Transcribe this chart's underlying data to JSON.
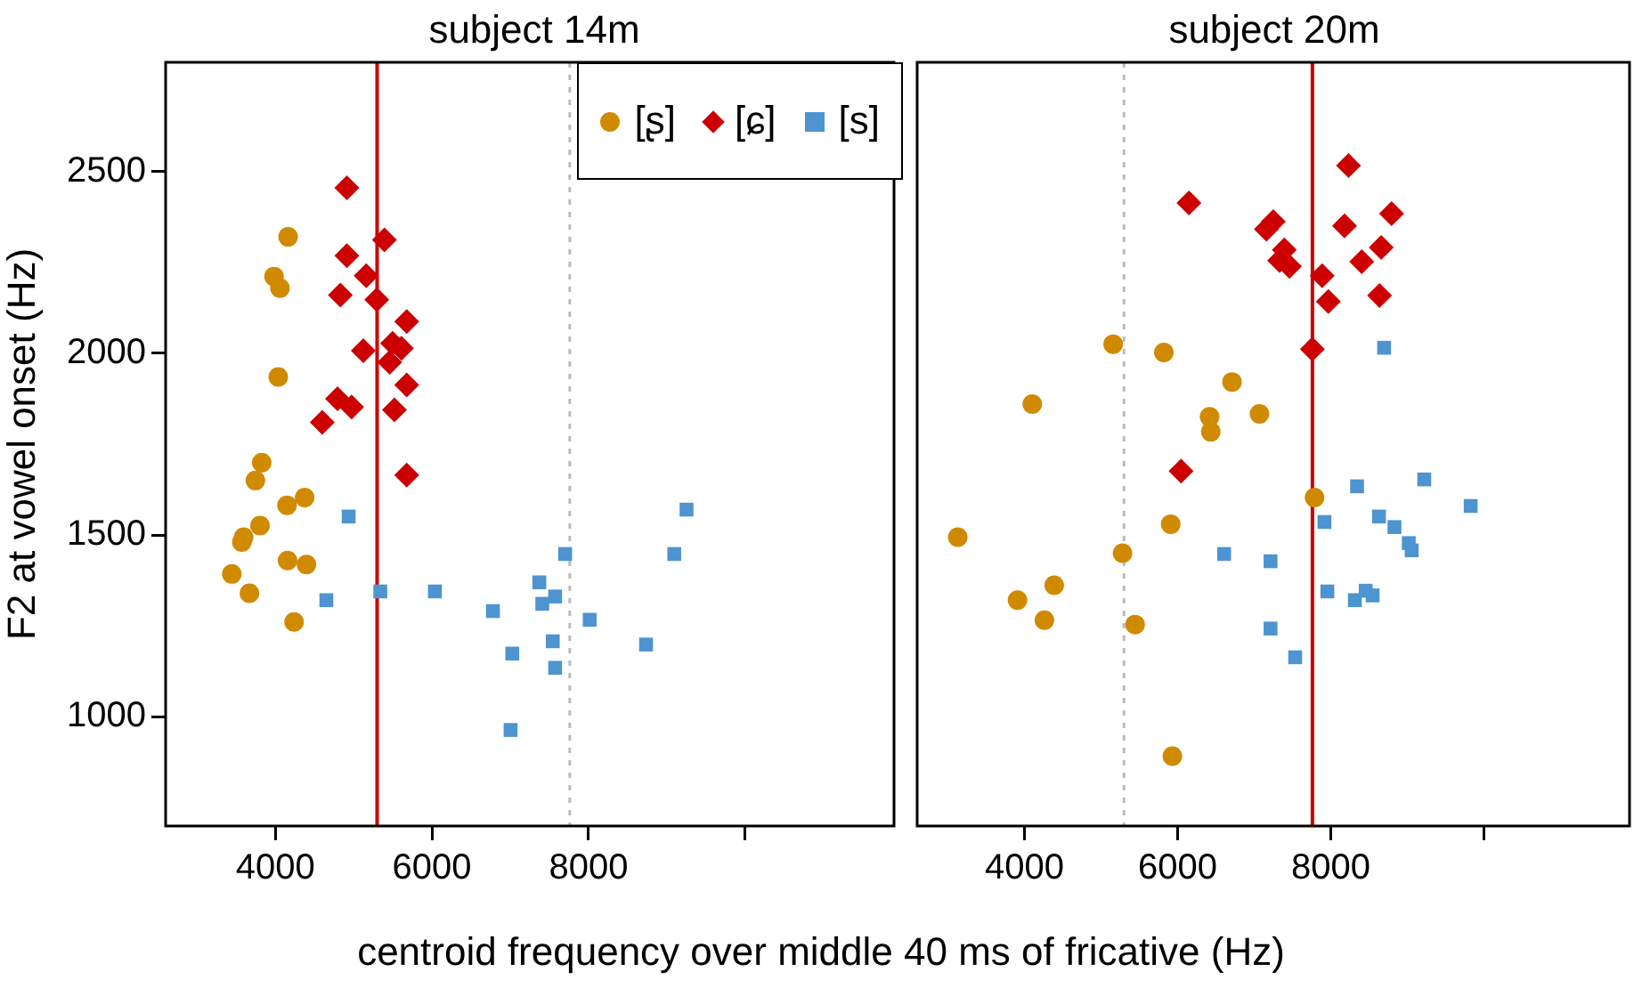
{
  "chart_data": [
    {
      "type": "scatter",
      "title": "subject 14m",
      "xlabel": "centroid frequency over middle 40 ms of fricative (Hz)",
      "ylabel": "F2 at vowel onset (Hz)",
      "xlim": [
        2600,
        11900
      ],
      "xticks": [
        4000,
        6000,
        8000,
        {
          "value": 10000,
          "label": null
        }
      ],
      "ylim": [
        700,
        2800
      ],
      "yticks": [
        1000,
        1500,
        2000,
        2500
      ],
      "grid": false,
      "legend": "top right",
      "series": [
        {
          "name": "[ʂ]",
          "color": "#d08a00",
          "marker": "circle",
          "x": [
            4164,
            3984,
            4060,
            4038,
            3827,
            3746,
            4375,
            4150,
            3805,
            3596,
            3573,
            4157,
            4398,
            3445,
            3670,
            4240
          ],
          "values": [
            2320,
            2211,
            2179,
            1935,
            1699,
            1650,
            1603,
            1582,
            1526,
            1494,
            1481,
            1430,
            1419,
            1393,
            1340,
            1261
          ]
        },
        {
          "name": "[ɕ]",
          "color": "#cc0000",
          "marker": "diamond",
          "x": [
            4914,
            5393,
            4914,
            5161,
            4831,
            5296,
            5678,
            5124,
            5498,
            5611,
            5461,
            5678,
            4794,
            4974,
            5521,
            4600,
            5678
          ],
          "values": [
            2455,
            2312,
            2268,
            2213,
            2160,
            2147,
            2087,
            2007,
            2027,
            2014,
            1975,
            1913,
            1875,
            1852,
            1844,
            1810,
            1665
          ]
        },
        {
          "name": "[s]",
          "color": "#4d94d0",
          "marker": "square",
          "x": [
            4937,
            9251,
            7701,
            9094,
            5341,
            6038,
            4652,
            7371,
            7573,
            7409,
            6779,
            8015,
            7543,
            8734,
            7026,
            7573,
            7004
          ],
          "values": [
            1551,
            1570,
            1448,
            1448,
            1345,
            1345,
            1321,
            1370,
            1331,
            1311,
            1291,
            1267,
            1208,
            1199,
            1174,
            1135,
            964
          ]
        }
      ],
      "ref_lines": [
        {
          "axis": "x",
          "value": 5300,
          "color": "#cc0000",
          "line_style": "solid"
        },
        {
          "axis": "x",
          "value": 7760,
          "color": "#bbbbbb",
          "line_style": "dotted"
        }
      ]
    },
    {
      "type": "scatter",
      "title": "subject 20m",
      "xlim": [
        2600,
        11900
      ],
      "xticks": [
        4000,
        6000,
        8000,
        {
          "value": 10000,
          "label": null
        }
      ],
      "ylim": [
        700,
        2800
      ],
      "yticks": [
        1000,
        1500,
        2000,
        2500
      ],
      "grid": false,
      "tick_labels": "x",
      "series": [
        {
          "color": "#d08a00",
          "marker": "circle",
          "x": [
            5159,
            5820,
            6710,
            4103,
            6418,
            7069,
            6433,
            7788,
            5910,
            3130,
            5281,
            4389,
            3910,
            4261,
            5445,
            5932
          ],
          "values": [
            2025,
            2002,
            1921,
            1860,
            1825,
            1833,
            1784,
            1603,
            1530,
            1494,
            1450,
            1362,
            1321,
            1266,
            1254,
            892
          ]
        },
        {
          "color": "#cc0000",
          "marker": "diamond",
          "x": [
            8231,
            6148,
            8793,
            7249,
            7159,
            8179,
            8658,
            7393,
            7332,
            7460,
            8404,
            7887,
            7968,
            8636,
            7759,
            6045
          ],
          "values": [
            2516,
            2413,
            2384,
            2362,
            2341,
            2350,
            2291,
            2284,
            2255,
            2239,
            2252,
            2213,
            2142,
            2159,
            2011,
            1676
          ]
        },
        {
          "color": "#4d94d0",
          "marker": "square",
          "x": [
            8696,
            8343,
            9220,
            9826,
            7917,
            8629,
            8831,
            9018,
            9056,
            6607,
            7213,
            7955,
            8456,
            8546,
            8314,
            7213,
            7535
          ],
          "values": [
            2015,
            1634,
            1653,
            1580,
            1536,
            1551,
            1522,
            1478,
            1458,
            1448,
            1428,
            1345,
            1347,
            1334,
            1321,
            1243,
            1164
          ]
        }
      ],
      "ref_lines": [
        {
          "axis": "x",
          "value": 5300,
          "color": "#bbbbbb",
          "line_style": "dotted"
        },
        {
          "axis": "x",
          "value": 7760,
          "color": "#cc0000",
          "line_style": "solid"
        }
      ]
    }
  ]
}
